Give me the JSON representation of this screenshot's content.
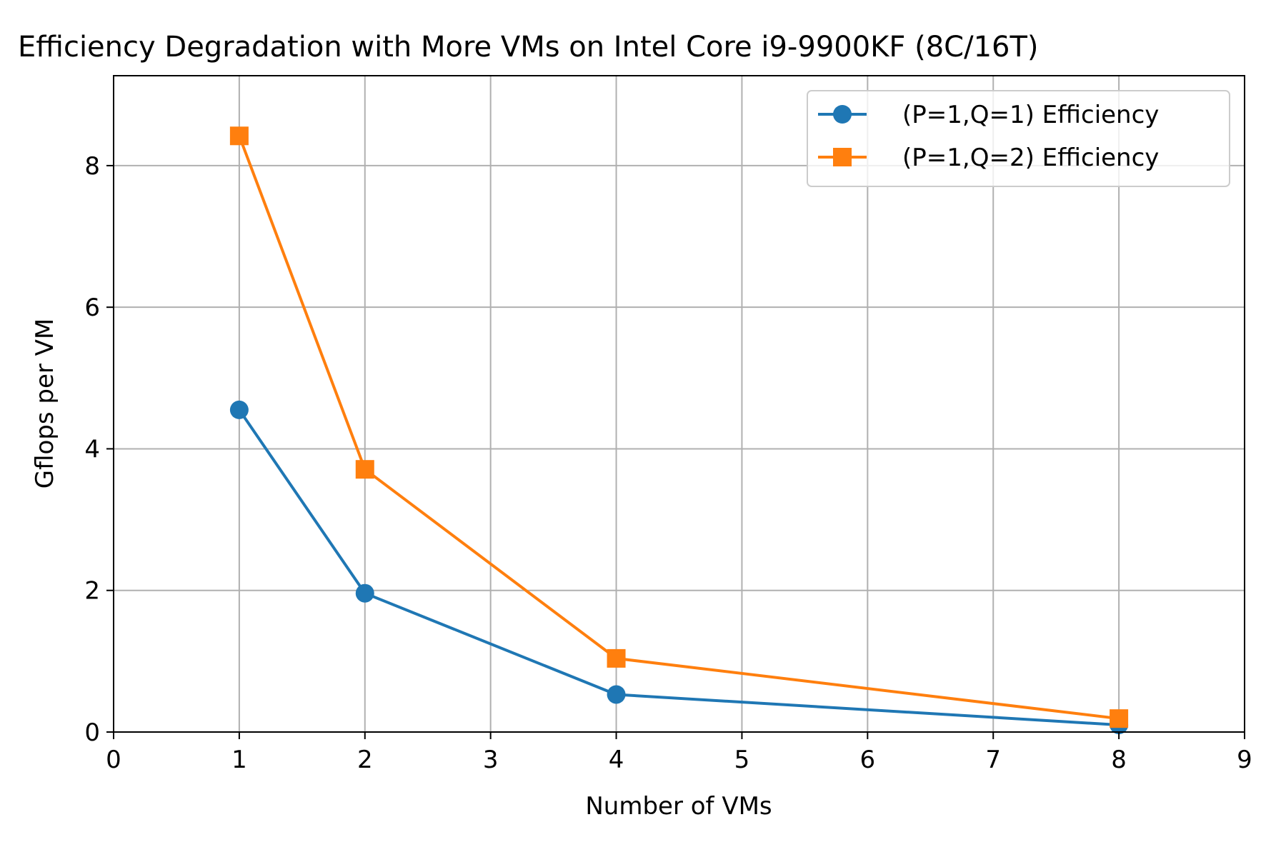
{
  "chart_data": {
    "type": "line",
    "title": "Efficiency Degradation with More VMs on Intel Core i9-9900KF (8C/16T)",
    "xlabel": "Number of VMs",
    "ylabel": "Gflops per VM",
    "xlim": [
      0,
      9
    ],
    "ylim": [
      0,
      9.27
    ],
    "xticks": [
      0,
      1,
      2,
      3,
      4,
      5,
      6,
      7,
      8,
      9
    ],
    "yticks": [
      0,
      2,
      4,
      6,
      8
    ],
    "grid": true,
    "legend_position": "top-right",
    "x": [
      1,
      2,
      4,
      8
    ],
    "series": [
      {
        "name": "(P=1,Q=1) Efficiency",
        "values": [
          4.55,
          1.96,
          0.53,
          0.1
        ],
        "color": "#1f77b4",
        "marker": "circle"
      },
      {
        "name": "(P=1,Q=2) Efficiency",
        "values": [
          8.42,
          3.71,
          1.04,
          0.19
        ],
        "color": "#ff7f0e",
        "marker": "square"
      }
    ]
  }
}
